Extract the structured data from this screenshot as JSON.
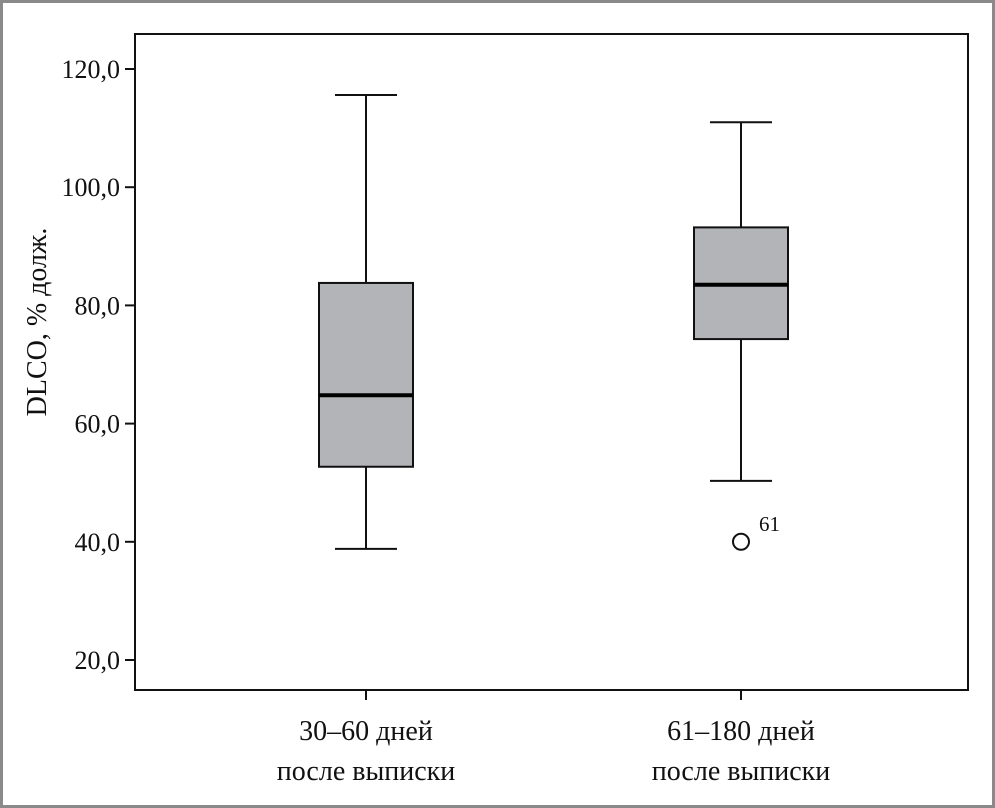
{
  "chart_data": {
    "type": "box",
    "ylabel": "DLCO, % долж.",
    "xlabel": "",
    "ylim": [
      15,
      126
    ],
    "yticks": [
      20,
      40,
      60,
      80,
      100,
      120
    ],
    "ytick_labels": [
      "20,0",
      "40,0",
      "60,0",
      "80,0",
      "100,0",
      "120,0"
    ],
    "grid": false,
    "box_fill": "#b3b4b7",
    "categories": [
      {
        "line1": "30–60 дней",
        "line2": "после выписки"
      },
      {
        "line1": "61–180 дней",
        "line2": "после выписки"
      }
    ],
    "boxes": [
      {
        "whisker_low": 38.8,
        "q1": 52.7,
        "median": 64.8,
        "q3": 83.8,
        "whisker_high": 115.6,
        "outliers": []
      },
      {
        "whisker_low": 50.3,
        "q1": 74.3,
        "median": 83.5,
        "q3": 93.2,
        "whisker_high": 111.0,
        "outliers": [
          {
            "value": 40.0,
            "label": "61"
          }
        ]
      }
    ]
  }
}
